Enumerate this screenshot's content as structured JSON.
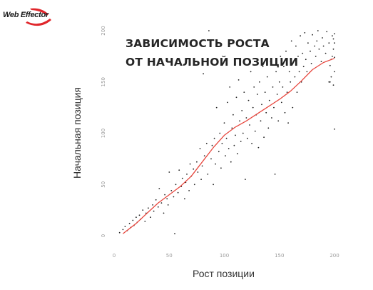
{
  "logo": {
    "text": "Web Effector",
    "accent_color": "#e0262b"
  },
  "chart_data": {
    "type": "scatter",
    "title_lines": [
      "ЗАВИСИМОСТЬ РОСТА",
      "ОТ НАЧАЛЬНОЙ ПОЗИЦИИ"
    ],
    "xlabel": "Рост позиции",
    "ylabel": "Начальная позиция",
    "xlim": [
      0,
      200
    ],
    "ylim": [
      0,
      200
    ],
    "xticks": [
      0,
      50,
      100,
      150,
      200
    ],
    "yticks": [
      0,
      50,
      100,
      150,
      200
    ],
    "grid": false,
    "point_color": "#222222",
    "trend_color": "#e8483f",
    "points": [
      [
        5,
        3
      ],
      [
        8,
        6
      ],
      [
        10,
        9
      ],
      [
        12,
        5
      ],
      [
        14,
        12
      ],
      [
        15,
        8
      ],
      [
        17,
        15
      ],
      [
        18,
        10
      ],
      [
        20,
        18
      ],
      [
        21,
        13
      ],
      [
        23,
        20
      ],
      [
        24,
        16
      ],
      [
        26,
        25
      ],
      [
        28,
        14
      ],
      [
        29,
        22
      ],
      [
        31,
        27
      ],
      [
        33,
        18
      ],
      [
        35,
        30
      ],
      [
        36,
        24
      ],
      [
        38,
        35
      ],
      [
        40,
        28
      ],
      [
        41,
        46
      ],
      [
        43,
        32
      ],
      [
        45,
        22
      ],
      [
        46,
        40
      ],
      [
        48,
        36
      ],
      [
        49,
        30
      ],
      [
        50,
        62
      ],
      [
        52,
        44
      ],
      [
        54,
        38
      ],
      [
        55,
        2
      ],
      [
        56,
        50
      ],
      [
        58,
        42
      ],
      [
        59,
        64
      ],
      [
        61,
        48
      ],
      [
        62,
        56
      ],
      [
        64,
        36
      ],
      [
        65,
        52
      ],
      [
        66,
        60
      ],
      [
        68,
        44
      ],
      [
        69,
        70
      ],
      [
        70,
        58
      ],
      [
        72,
        65
      ],
      [
        73,
        50
      ],
      [
        75,
        72
      ],
      [
        76,
        62
      ],
      [
        78,
        85
      ],
      [
        79,
        55
      ],
      [
        80,
        68
      ],
      [
        81,
        158
      ],
      [
        82,
        78
      ],
      [
        84,
        90
      ],
      [
        85,
        60
      ],
      [
        86,
        200
      ],
      [
        88,
        75
      ],
      [
        89,
        88
      ],
      [
        90,
        50
      ],
      [
        91,
        95
      ],
      [
        92,
        70
      ],
      [
        93,
        125
      ],
      [
        95,
        82
      ],
      [
        96,
        100
      ],
      [
        97,
        66
      ],
      [
        98,
        90
      ],
      [
        100,
        110
      ],
      [
        101,
        78
      ],
      [
        102,
        95
      ],
      [
        103,
        130
      ],
      [
        104,
        85
      ],
      [
        105,
        145
      ],
      [
        106,
        72
      ],
      [
        107,
        105
      ],
      [
        108,
        118
      ],
      [
        109,
        88
      ],
      [
        110,
        98
      ],
      [
        111,
        135
      ],
      [
        112,
        80
      ],
      [
        113,
        152
      ],
      [
        114,
        112
      ],
      [
        115,
        92
      ],
      [
        116,
        122
      ],
      [
        117,
        100
      ],
      [
        118,
        140
      ],
      [
        119,
        55
      ],
      [
        120,
        115
      ],
      [
        121,
        95
      ],
      [
        122,
        132
      ],
      [
        123,
        108
      ],
      [
        124,
        160
      ],
      [
        125,
        90
      ],
      [
        126,
        125
      ],
      [
        127,
        145
      ],
      [
        128,
        102
      ],
      [
        129,
        118
      ],
      [
        130,
        138
      ],
      [
        131,
        86
      ],
      [
        132,
        150
      ],
      [
        133,
        112
      ],
      [
        134,
        128
      ],
      [
        135,
        165
      ],
      [
        136,
        96
      ],
      [
        137,
        140
      ],
      [
        138,
        120
      ],
      [
        139,
        155
      ],
      [
        140,
        105
      ],
      [
        141,
        132
      ],
      [
        142,
        170
      ],
      [
        143,
        115
      ],
      [
        144,
        145
      ],
      [
        145,
        125
      ],
      [
        146,
        60
      ],
      [
        147,
        160
      ],
      [
        148,
        138
      ],
      [
        149,
        112
      ],
      [
        150,
        150
      ],
      [
        151,
        175
      ],
      [
        152,
        130
      ],
      [
        153,
        145
      ],
      [
        154,
        165
      ],
      [
        155,
        120
      ],
      [
        156,
        180
      ],
      [
        157,
        140
      ],
      [
        158,
        110
      ],
      [
        159,
        160
      ],
      [
        160,
        150
      ],
      [
        161,
        190
      ],
      [
        162,
        125
      ],
      [
        163,
        170
      ],
      [
        164,
        155
      ],
      [
        165,
        185
      ],
      [
        166,
        140
      ],
      [
        167,
        175
      ],
      [
        168,
        160
      ],
      [
        169,
        195
      ],
      [
        170,
        150
      ],
      [
        171,
        178
      ],
      [
        172,
        165
      ],
      [
        173,
        198
      ],
      [
        174,
        172
      ],
      [
        175,
        160
      ],
      [
        176,
        188
      ],
      [
        178,
        180
      ],
      [
        179,
        168
      ],
      [
        180,
        196
      ],
      [
        182,
        185
      ],
      [
        183,
        175
      ],
      [
        184,
        190
      ],
      [
        185,
        200
      ],
      [
        186,
        182
      ],
      [
        188,
        170
      ],
      [
        189,
        193
      ],
      [
        190,
        185
      ],
      [
        192,
        178
      ],
      [
        193,
        199
      ],
      [
        195,
        188
      ],
      [
        196,
        150
      ],
      [
        197,
        172
      ],
      [
        198,
        195
      ],
      [
        199,
        182
      ],
      [
        200,
        104
      ],
      [
        199,
        147
      ],
      [
        200,
        160
      ],
      [
        200,
        188
      ],
      [
        198,
        175
      ],
      [
        197,
        155
      ],
      [
        196,
        166
      ],
      [
        195,
        150
      ],
      [
        200,
        197
      ],
      [
        199,
        192
      ],
      [
        200,
        174
      ]
    ],
    "trend": [
      [
        8,
        2
      ],
      [
        20,
        12
      ],
      [
        30,
        22
      ],
      [
        40,
        32
      ],
      [
        50,
        40
      ],
      [
        60,
        48
      ],
      [
        70,
        58
      ],
      [
        80,
        72
      ],
      [
        90,
        86
      ],
      [
        100,
        98
      ],
      [
        110,
        106
      ],
      [
        120,
        112
      ],
      [
        130,
        119
      ],
      [
        140,
        126
      ],
      [
        150,
        133
      ],
      [
        160,
        141
      ],
      [
        170,
        151
      ],
      [
        180,
        162
      ],
      [
        190,
        169
      ],
      [
        200,
        173
      ]
    ]
  }
}
